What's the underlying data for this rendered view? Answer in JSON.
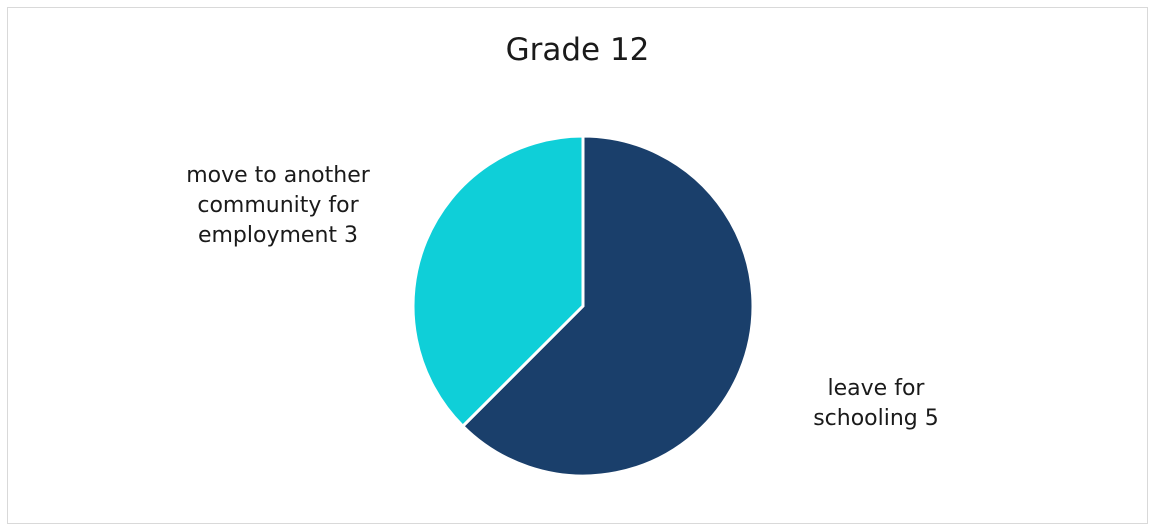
{
  "chart_data": {
    "type": "pie",
    "title": "Grade 12",
    "slices": [
      {
        "label": "leave for\nschooling 5",
        "category": "leave for schooling",
        "value": 5,
        "color": "#1a3f6b"
      },
      {
        "label": "move to another\ncommunity for\nemployment 3",
        "category": "move to another community for employment",
        "value": 3,
        "color": "#0fcfd8"
      }
    ],
    "start_angle_deg": 0,
    "direction": "clockwise",
    "legend": "none"
  }
}
